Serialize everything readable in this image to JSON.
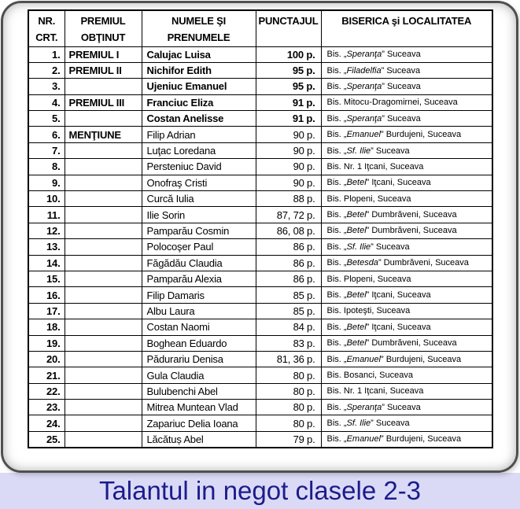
{
  "caption": "Talantul in negot clasele 2-3",
  "table": {
    "columns": [
      {
        "lines": [
          "NR.",
          "CRT."
        ]
      },
      {
        "lines": [
          "PREMIUL",
          "OBŢINUT"
        ]
      },
      {
        "lines": [
          "NUMELE ŞI",
          "PRENUMELE"
        ]
      },
      {
        "lines": [
          "PUNCTAJUL",
          ""
        ]
      },
      {
        "lines": [
          "BISERICA şi LOCALITATEA",
          ""
        ]
      }
    ],
    "rows": [
      {
        "nr": "1.",
        "prize": "PREMIUL I",
        "name": "Calujac Luisa",
        "score": "100 p.",
        "church": "Bis. „Speranţa” Suceava",
        "emphasis": true
      },
      {
        "nr": "2.",
        "prize": "PREMIUL II",
        "name": "Nichifor Edith",
        "score": "95 p.",
        "church": "Bis. „Filadelfia” Suceava",
        "emphasis": true
      },
      {
        "nr": "3.",
        "prize": "",
        "name": "Ujeniuc Emanuel",
        "score": "95 p.",
        "church": "Bis. „Speranţa” Suceava",
        "emphasis": true
      },
      {
        "nr": "4.",
        "prize": "PREMIUL III",
        "name": "Franciuc Eliza",
        "score": "91 p.",
        "church": "Bis. Mitocu-Dragomirnei, Suceava",
        "emphasis": true
      },
      {
        "nr": "5.",
        "prize": "",
        "name": "Costan Anelisse",
        "score": "91 p.",
        "church": "Bis. „Speranţa” Suceava",
        "emphasis": true
      },
      {
        "nr": "6.",
        "prize": "MENŢIUNE",
        "name": "Filip Adrian",
        "score": "90 p.",
        "church": "Bis. „Emanuel” Burdujeni, Suceava",
        "emphasis": false
      },
      {
        "nr": "7.",
        "prize": "",
        "name": "Luţac Loredana",
        "score": "90 p.",
        "church": "Bis. „Sf. Ilie” Suceava",
        "emphasis": false
      },
      {
        "nr": "8.",
        "prize": "",
        "name": "Persteniuc David",
        "score": "90 p.",
        "church": "Bis. Nr. 1 Iţcani, Suceava",
        "emphasis": false
      },
      {
        "nr": "9.",
        "prize": "",
        "name": "Onofraş Cristi",
        "score": "90 p.",
        "church": "Bis. „Betel” Iţcani, Suceava",
        "emphasis": false
      },
      {
        "nr": "10.",
        "prize": "",
        "name": "Curcă Iulia",
        "score": "88 p.",
        "church": "Bis. Plopeni, Suceava",
        "emphasis": false
      },
      {
        "nr": "11.",
        "prize": "",
        "name": "Ilie Sorin",
        "score": "87, 72 p.",
        "church": "Bis. „Betel” Dumbrăveni, Suceava",
        "emphasis": false
      },
      {
        "nr": "12.",
        "prize": "",
        "name": "Pamparău Cosmin",
        "score": "86, 08 p.",
        "church": "Bis. „Betel” Dumbrăveni, Suceava",
        "emphasis": false
      },
      {
        "nr": "13.",
        "prize": "",
        "name": "Polocoşer Paul",
        "score": "86 p.",
        "church": "Bis. „Sf. Ilie” Suceava",
        "emphasis": false
      },
      {
        "nr": "14.",
        "prize": "",
        "name": "Făgădău Claudia",
        "score": "86 p.",
        "church": "Bis. „Betesda” Dumbrăveni, Suceava",
        "emphasis": false
      },
      {
        "nr": "15.",
        "prize": "",
        "name": "Pamparău Alexia",
        "score": "86 p.",
        "church": "Bis. Plopeni, Suceava",
        "emphasis": false
      },
      {
        "nr": "16.",
        "prize": "",
        "name": "Filip Damaris",
        "score": "85 p.",
        "church": "Bis. „Betel” Iţcani, Suceava",
        "emphasis": false
      },
      {
        "nr": "17.",
        "prize": "",
        "name": "Albu Laura",
        "score": "85 p.",
        "church": "Bis. Ipoteşti, Suceava",
        "emphasis": false
      },
      {
        "nr": "18.",
        "prize": "",
        "name": "Costan Naomi",
        "score": "84 p.",
        "church": "Bis. „Betel” Iţcani, Suceava",
        "emphasis": false
      },
      {
        "nr": "19.",
        "prize": "",
        "name": "Boghean Eduardo",
        "score": "83 p.",
        "church": "Bis. „Betel” Dumbrăveni, Suceava",
        "emphasis": false
      },
      {
        "nr": "20.",
        "prize": "",
        "name": "Pădurariu Denisa",
        "score": "81, 36 p.",
        "church": "Bis. „Emanuel” Burdujeni, Suceava",
        "emphasis": false
      },
      {
        "nr": "21.",
        "prize": "",
        "name": "Gula Claudia",
        "score": "80 p.",
        "church": "Bis. Bosanci, Suceava",
        "emphasis": false
      },
      {
        "nr": "22.",
        "prize": "",
        "name": "Bulubenchi Abel",
        "score": "80 p.",
        "church": "Bis. Nr. 1 Iţcani, Suceava",
        "emphasis": false
      },
      {
        "nr": "23.",
        "prize": "",
        "name": "Mitrea Muntean Vlad",
        "score": "80 p.",
        "church": "Bis. „Speranţa” Suceava",
        "emphasis": false
      },
      {
        "nr": "24.",
        "prize": "",
        "name": "Zapariuc Delia Ioana",
        "score": "80 p.",
        "church": "Bis. „Sf. Ilie” Suceava",
        "emphasis": false
      },
      {
        "nr": "25.",
        "prize": "",
        "name": "Lăcătuș Abel",
        "score": "79 p.",
        "church": "Bis. „Emanuel” Burdujeni, Suceava",
        "emphasis": false
      }
    ]
  },
  "colors": {
    "caption_text": "#1c1c8c",
    "caption_background": "#dbdaf6",
    "table_border": "#000000",
    "card_border": "#4f4f4f"
  }
}
